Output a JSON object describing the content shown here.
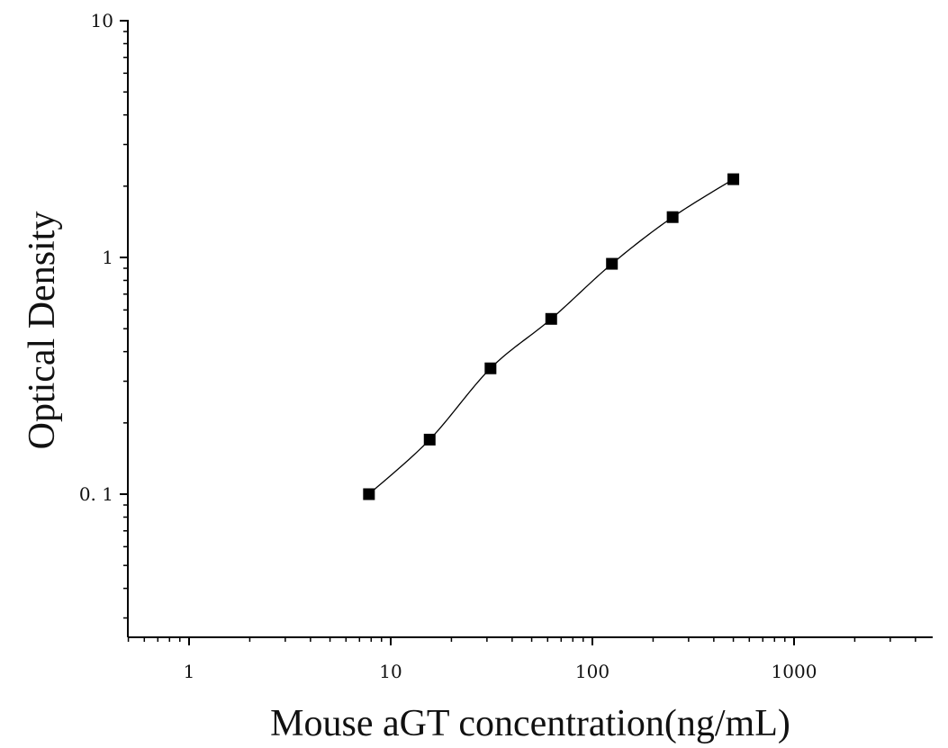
{
  "chart_data": {
    "type": "scatter",
    "title": "",
    "xlabel": "Mouse aGT concentration(ng/mL)",
    "ylabel": "Optical Density",
    "x_scale": "log",
    "y_scale": "log",
    "xlim": [
      0.5,
      5000
    ],
    "ylim": [
      0.025,
      10
    ],
    "x_ticks": [
      1,
      10,
      100,
      1000
    ],
    "x_tick_labels": [
      "1",
      "10",
      "100",
      "1000"
    ],
    "y_ticks": [
      0.1,
      1,
      10
    ],
    "y_tick_labels": [
      "0. 1",
      "1",
      "10"
    ],
    "grid": false,
    "legend": "none",
    "marker": "square",
    "marker_color": "#000000",
    "line_color": "#000000",
    "fit_curve": true,
    "series": [
      {
        "x": [
          7.8,
          15.6,
          31.25,
          62.5,
          125,
          250,
          500
        ],
        "y": [
          0.1,
          0.17,
          0.34,
          0.55,
          0.94,
          1.48,
          2.14
        ]
      }
    ]
  }
}
